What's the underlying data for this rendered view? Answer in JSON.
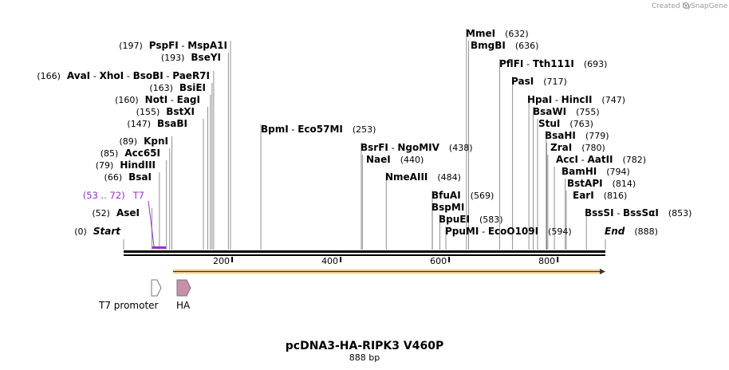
{
  "brand": {
    "text": "Created by",
    "name": "SnapGene",
    "icon": "snapgene-logo-icon"
  },
  "plasmid": {
    "name": "pcDNA3-HA-RIPK3 V460P",
    "length_text": "888 bp",
    "length": 888
  },
  "axis": {
    "ticks": [
      200,
      400,
      600,
      800
    ]
  },
  "sites": [
    {
      "id": "start",
      "pos": 0,
      "labels": [
        {
          "t": "(0)",
          "k": "num"
        },
        {
          "t": "Start",
          "k": "italic"
        }
      ]
    },
    {
      "id": "asei",
      "pos": 52,
      "labels": [
        {
          "t": "(52)",
          "k": "num"
        },
        {
          "t": "AseI",
          "k": "name"
        }
      ]
    },
    {
      "id": "bsai",
      "pos": 66,
      "labels": [
        {
          "t": "(66)",
          "k": "num"
        },
        {
          "t": "BsaI",
          "k": "name"
        }
      ]
    },
    {
      "id": "hindiii",
      "pos": 79,
      "labels": [
        {
          "t": "(79)",
          "k": "num"
        },
        {
          "t": "HindIII",
          "k": "name"
        }
      ]
    },
    {
      "id": "acc65i",
      "pos": 85,
      "labels": [
        {
          "t": "(85)",
          "k": "num"
        },
        {
          "t": "Acc65I",
          "k": "name"
        }
      ]
    },
    {
      "id": "kpni",
      "pos": 89,
      "labels": [
        {
          "t": "(89)",
          "k": "num"
        },
        {
          "t": "KpnI",
          "k": "name"
        }
      ]
    },
    {
      "id": "bsabi",
      "pos": 147,
      "labels": [
        {
          "t": "(147)",
          "k": "num"
        },
        {
          "t": "BsaBI",
          "k": "name"
        }
      ]
    },
    {
      "id": "bstxi",
      "pos": 155,
      "labels": [
        {
          "t": "(155)",
          "k": "num"
        },
        {
          "t": "BstXI",
          "k": "name"
        }
      ]
    },
    {
      "id": "noti",
      "pos": 160,
      "labels": [
        {
          "t": "(160)",
          "k": "num"
        },
        {
          "t": "NotI",
          "k": "name"
        },
        {
          "t": " - ",
          "k": "sep"
        },
        {
          "t": "EagI",
          "k": "name"
        }
      ]
    },
    {
      "id": "bsiei",
      "pos": 163,
      "labels": [
        {
          "t": "(163)",
          "k": "num"
        },
        {
          "t": "BsiEI",
          "k": "name"
        }
      ]
    },
    {
      "id": "avai",
      "pos": 166,
      "labels": [
        {
          "t": "(166)",
          "k": "num"
        },
        {
          "t": "AvaI",
          "k": "name"
        },
        {
          "t": " - ",
          "k": "sep"
        },
        {
          "t": "XhoI",
          "k": "name"
        },
        {
          "t": " - ",
          "k": "sep"
        },
        {
          "t": "BsoBI",
          "k": "name"
        },
        {
          "t": " - ",
          "k": "sep"
        },
        {
          "t": "PaeR7I",
          "k": "name"
        }
      ]
    },
    {
      "id": "bseyi",
      "pos": 193,
      "labels": [
        {
          "t": "(193)",
          "k": "num"
        },
        {
          "t": "BseYI",
          "k": "name"
        }
      ]
    },
    {
      "id": "pspfi",
      "pos": 197,
      "labels": [
        {
          "t": "(197)",
          "k": "num"
        },
        {
          "t": "PspFI",
          "k": "name"
        },
        {
          "t": " - ",
          "k": "sep"
        },
        {
          "t": "MspA1I",
          "k": "name"
        }
      ]
    },
    {
      "id": "bpmi",
      "pos": 253,
      "labels": [
        {
          "t": "BpmI",
          "k": "name"
        },
        {
          "t": " - ",
          "k": "sep"
        },
        {
          "t": "Eco57MI",
          "k": "name"
        },
        {
          "t": "(253)",
          "k": "num"
        }
      ]
    },
    {
      "id": "bsrfi",
      "pos": 438,
      "labels": [
        {
          "t": "BsrFI",
          "k": "name"
        },
        {
          "t": " - ",
          "k": "sep"
        },
        {
          "t": "NgoMIV",
          "k": "name"
        },
        {
          "t": "(438)",
          "k": "num"
        }
      ]
    },
    {
      "id": "naei",
      "pos": 440,
      "labels": [
        {
          "t": "NaeI",
          "k": "name"
        },
        {
          "t": "(440)",
          "k": "num"
        }
      ]
    },
    {
      "id": "nmeaiii",
      "pos": 484,
      "labels": [
        {
          "t": "NmeAIII",
          "k": "name"
        },
        {
          "t": "(484)",
          "k": "num"
        }
      ]
    },
    {
      "id": "bfuai",
      "pos": 569,
      "labels": [
        {
          "t": "BfuAI",
          "k": "name"
        },
        {
          "t": "(569)",
          "k": "num"
        }
      ]
    },
    {
      "id": "bspmi",
      "pos": 569,
      "labels": [
        {
          "t": "BspMI",
          "k": "name"
        }
      ]
    },
    {
      "id": "bpuei",
      "pos": 583,
      "labels": [
        {
          "t": "BpuEI",
          "k": "name"
        },
        {
          "t": "(583)",
          "k": "num"
        }
      ]
    },
    {
      "id": "ppumi",
      "pos": 594,
      "labels": [
        {
          "t": "PpuMI",
          "k": "name"
        },
        {
          "t": " - ",
          "k": "sep"
        },
        {
          "t": "EcoO109I",
          "k": "name"
        },
        {
          "t": "(594)",
          "k": "num"
        }
      ]
    },
    {
      "id": "mmei",
      "pos": 632,
      "labels": [
        {
          "t": "MmeI",
          "k": "name"
        },
        {
          "t": "(632)",
          "k": "num"
        }
      ]
    },
    {
      "id": "bmgbi",
      "pos": 636,
      "labels": [
        {
          "t": "BmgBI",
          "k": "name"
        },
        {
          "t": "(636)",
          "k": "num"
        }
      ]
    },
    {
      "id": "pflfi",
      "pos": 693,
      "labels": [
        {
          "t": "PflFI",
          "k": "name"
        },
        {
          "t": " - ",
          "k": "sep"
        },
        {
          "t": "Tth111I",
          "k": "name"
        },
        {
          "t": "(693)",
          "k": "num"
        }
      ]
    },
    {
      "id": "pasi",
      "pos": 717,
      "labels": [
        {
          "t": "PasI",
          "k": "name"
        },
        {
          "t": "(717)",
          "k": "num"
        }
      ]
    },
    {
      "id": "hpai",
      "pos": 747,
      "labels": [
        {
          "t": "HpaI",
          "k": "name"
        },
        {
          "t": " - ",
          "k": "sep"
        },
        {
          "t": "HincII",
          "k": "name"
        },
        {
          "t": "(747)",
          "k": "num"
        }
      ]
    },
    {
      "id": "bsawi",
      "pos": 755,
      "labels": [
        {
          "t": "BsaWI",
          "k": "name"
        },
        {
          "t": "(755)",
          "k": "num"
        }
      ]
    },
    {
      "id": "stui",
      "pos": 763,
      "labels": [
        {
          "t": "StuI",
          "k": "name"
        },
        {
          "t": "(763)",
          "k": "num"
        }
      ]
    },
    {
      "id": "bsahi",
      "pos": 779,
      "labels": [
        {
          "t": "BsaHI",
          "k": "name"
        },
        {
          "t": "(779)",
          "k": "num"
        }
      ]
    },
    {
      "id": "zrai",
      "pos": 780,
      "labels": [
        {
          "t": "ZraI",
          "k": "name"
        },
        {
          "t": "(780)",
          "k": "num"
        }
      ]
    },
    {
      "id": "acci",
      "pos": 782,
      "labels": [
        {
          "t": "AccI",
          "k": "name"
        },
        {
          "t": " - ",
          "k": "sep"
        },
        {
          "t": "AatII",
          "k": "name"
        },
        {
          "t": "(782)",
          "k": "num"
        }
      ]
    },
    {
      "id": "bamhi",
      "pos": 794,
      "labels": [
        {
          "t": "BamHI",
          "k": "name"
        },
        {
          "t": "(794)",
          "k": "num"
        }
      ]
    },
    {
      "id": "bstapi",
      "pos": 814,
      "labels": [
        {
          "t": "BstAPI",
          "k": "name"
        },
        {
          "t": "(814)",
          "k": "num"
        }
      ]
    },
    {
      "id": "eari",
      "pos": 816,
      "labels": [
        {
          "t": "EarI",
          "k": "name"
        },
        {
          "t": "(816)",
          "k": "num"
        }
      ]
    },
    {
      "id": "bsssi",
      "pos": 853,
      "labels": [
        {
          "t": "BssSI",
          "k": "name"
        },
        {
          "t": " - ",
          "k": "sep"
        },
        {
          "t": "BssSαI",
          "k": "name"
        },
        {
          "t": "(853)",
          "k": "num"
        }
      ]
    },
    {
      "id": "end",
      "pos": 888,
      "labels": [
        {
          "t": "End",
          "k": "italic"
        },
        {
          "t": "(888)",
          "k": "num"
        }
      ]
    }
  ],
  "primer": {
    "name": "T7",
    "range_text": "(53 .. 72)",
    "start": 53,
    "end": 72,
    "color": "#9a2fd0"
  },
  "features": [
    {
      "id": "t7-promoter",
      "name": "T7 promoter",
      "start": 53,
      "end": 72,
      "color": "#ffffff"
    },
    {
      "id": "ha",
      "name": "HA",
      "start": 97,
      "end": 123,
      "color": "#c98fac"
    }
  ],
  "orf": {
    "start": 91,
    "end": 888,
    "color": "#f5a623"
  }
}
